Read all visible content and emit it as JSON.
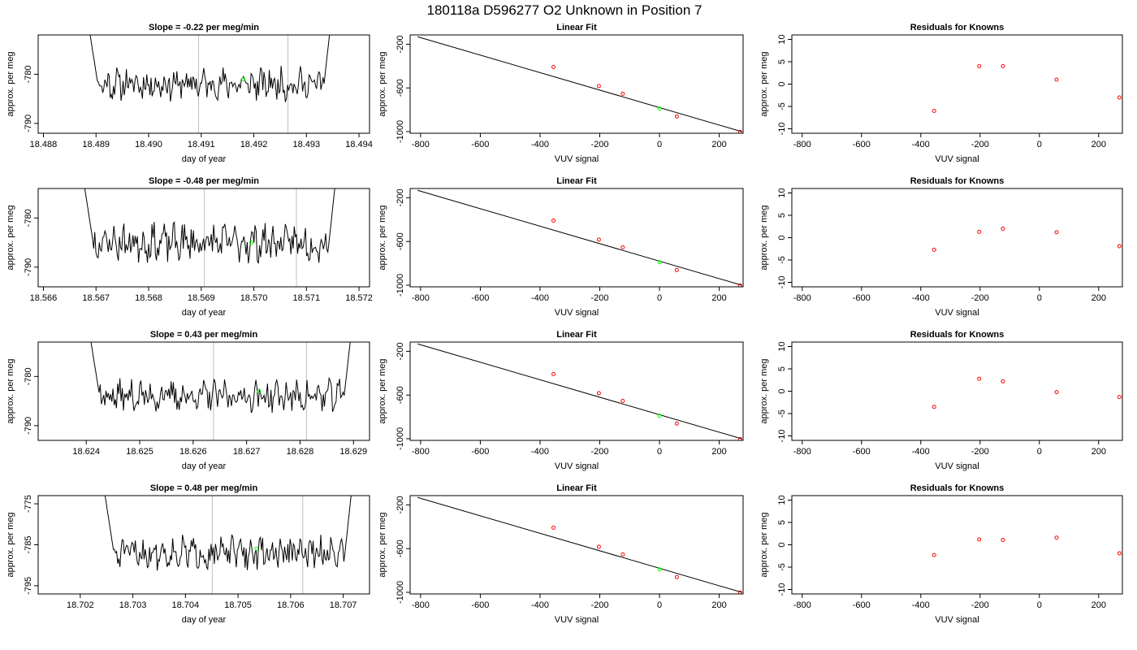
{
  "title": "180118a      D596277   O2 Unknown in Position  7",
  "colors": {
    "trace": "#000000",
    "vline": "#bebebe",
    "highlight": "#00ff00",
    "known": "#ff0000"
  },
  "rows": [
    {
      "charts": [
        {
          "type": "line",
          "title": "Slope =  -0.22  per meg/min",
          "xlabel": "day of year",
          "ylabel": "approx. per meg",
          "xlim": [
            18.4879,
            18.4942
          ],
          "ylim": [
            -792,
            -772
          ],
          "xticks": [
            18.488,
            18.489,
            18.49,
            18.491,
            18.492,
            18.493,
            18.494
          ],
          "xtick_labels": [
            "18.488",
            "18.489",
            "18.490",
            "18.491",
            "18.492",
            "18.493",
            "18.494"
          ],
          "yticks": [
            -790,
            -780
          ],
          "ytick_labels": [
            "-790",
            "-780"
          ],
          "x_start": 18.4888,
          "x_end": 18.4935,
          "baseline": -782,
          "amplitude": 2.5,
          "seed": 11,
          "vlines": [
            18.49095,
            18.49265
          ],
          "highlight": {
            "x": 18.4918,
            "y": -781
          }
        },
        {
          "type": "line",
          "title": "Linear Fit",
          "xlabel": "VUV signal",
          "ylabel": "approx. per meg",
          "xlim": [
            -835,
            280
          ],
          "ylim": [
            -1015,
            -115
          ],
          "xticks": [
            -800,
            -600,
            -400,
            -200,
            0,
            200
          ],
          "xtick_labels": [
            "-800",
            "-600",
            "-400",
            "-200",
            "0",
            "200"
          ],
          "yticks": [
            -1000,
            -600,
            -200
          ],
          "ytick_labels": [
            "-1000",
            "-600",
            "-200"
          ],
          "fit_line": [
            [
              -810,
              -132
            ],
            [
              275,
              -1000
            ]
          ],
          "knowns_x": [
            -355,
            -203,
            -123,
            58,
            270
          ],
          "knowns_y": [
            -409,
            -583,
            -653,
            -861,
            -1003
          ],
          "unknown": {
            "x": 0,
            "y": -790
          }
        },
        {
          "type": "scatter",
          "title": "Residuals for Knowns",
          "xlabel": "VUV signal",
          "ylabel": "approx. per meg",
          "xlim": [
            -835,
            280
          ],
          "ylim": [
            -11,
            11
          ],
          "xticks": [
            -800,
            -600,
            -400,
            -200,
            0,
            200
          ],
          "xtick_labels": [
            "-800",
            "-600",
            "-400",
            "-200",
            "0",
            "200"
          ],
          "yticks": [
            -10,
            -5,
            0,
            5,
            10
          ],
          "ytick_labels": [
            "-10",
            "-5",
            "0",
            "5",
            "10"
          ],
          "x": [
            -355,
            -203,
            -123,
            58,
            270
          ],
          "y": [
            -6,
            4,
            4,
            1,
            -3
          ]
        }
      ]
    },
    {
      "charts": [
        {
          "type": "line",
          "title": "Slope =  -0.48  per meg/min",
          "xlabel": "day of year",
          "ylabel": "approx. per meg",
          "xlim": [
            18.5659,
            18.5722
          ],
          "ylim": [
            -794,
            -774
          ],
          "xticks": [
            18.566,
            18.567,
            18.568,
            18.569,
            18.57,
            18.571,
            18.572
          ],
          "xtick_labels": [
            "18.566",
            "18.567",
            "18.568",
            "18.569",
            "18.570",
            "18.571",
            "18.572"
          ],
          "yticks": [
            -790,
            -780
          ],
          "ytick_labels": [
            "-790",
            "-780"
          ],
          "x_start": 18.5667,
          "x_end": 18.5716,
          "baseline": -785,
          "amplitude": 3,
          "seed": 23,
          "vlines": [
            18.56906,
            18.57081
          ],
          "highlight": {
            "x": 18.56995,
            "y": -785
          }
        },
        {
          "type": "line",
          "title": "Linear Fit",
          "xlabel": "VUV signal",
          "ylabel": "approx. per meg",
          "xlim": [
            -835,
            280
          ],
          "ylim": [
            -1015,
            -115
          ],
          "xticks": [
            -800,
            -600,
            -400,
            -200,
            0,
            200
          ],
          "xtick_labels": [
            "-800",
            "-600",
            "-400",
            "-200",
            "0",
            "200"
          ],
          "yticks": [
            -1000,
            -600,
            -200
          ],
          "ytick_labels": [
            "-1000",
            "-600",
            "-200"
          ],
          "fit_line": [
            [
              -810,
              -132
            ],
            [
              275,
              -1000
            ]
          ],
          "knowns_x": [
            -355,
            -203,
            -123,
            58,
            270
          ],
          "knowns_y": [
            -409,
            -583,
            -653,
            -861,
            -1003
          ],
          "unknown": {
            "x": 0,
            "y": -790
          }
        },
        {
          "type": "scatter",
          "title": "Residuals for Knowns",
          "xlabel": "VUV signal",
          "ylabel": "approx. per meg",
          "xlim": [
            -835,
            280
          ],
          "ylim": [
            -11,
            11
          ],
          "xticks": [
            -800,
            -600,
            -400,
            -200,
            0,
            200
          ],
          "xtick_labels": [
            "-800",
            "-600",
            "-400",
            "-200",
            "0",
            "200"
          ],
          "yticks": [
            -10,
            -5,
            0,
            5,
            10
          ],
          "ytick_labels": [
            "-10",
            "-5",
            "0",
            "5",
            "10"
          ],
          "x": [
            -355,
            -203,
            -123,
            58,
            270
          ],
          "y": [
            -2.7,
            1.3,
            2,
            1.2,
            -1.9
          ]
        }
      ]
    },
    {
      "charts": [
        {
          "type": "line",
          "title": "Slope =  0.43  per meg/min",
          "xlabel": "day of year",
          "ylabel": "approx. per meg",
          "xlim": [
            18.6231,
            18.6293
          ],
          "ylim": [
            -793,
            -773
          ],
          "xticks": [
            18.624,
            18.625,
            18.626,
            18.627,
            18.628,
            18.629
          ],
          "xtick_labels": [
            "18.624",
            "18.625",
            "18.626",
            "18.627",
            "18.628",
            "18.629"
          ],
          "yticks": [
            -790,
            -780
          ],
          "ytick_labels": [
            "-790",
            "-780"
          ],
          "x_start": 18.624,
          "x_end": 18.629,
          "baseline": -784,
          "amplitude": 2.5,
          "seed": 37,
          "vlines": [
            18.62638,
            18.62812
          ],
          "highlight": {
            "x": 18.62723,
            "y": -783
          }
        },
        {
          "type": "line",
          "title": "Linear Fit",
          "xlabel": "VUV signal",
          "ylabel": "approx. per meg",
          "xlim": [
            -835,
            280
          ],
          "ylim": [
            -1015,
            -115
          ],
          "xticks": [
            -800,
            -600,
            -400,
            -200,
            0,
            200
          ],
          "xtick_labels": [
            "-800",
            "-600",
            "-400",
            "-200",
            "0",
            "200"
          ],
          "yticks": [
            -1000,
            -600,
            -200
          ],
          "ytick_labels": [
            "-1000",
            "-600",
            "-200"
          ],
          "fit_line": [
            [
              -810,
              -132
            ],
            [
              275,
              -1000
            ]
          ],
          "knowns_x": [
            -355,
            -203,
            -123,
            58,
            270
          ],
          "knowns_y": [
            -409,
            -583,
            -653,
            -861,
            -1003
          ],
          "unknown": {
            "x": 0,
            "y": -790
          }
        },
        {
          "type": "scatter",
          "title": "Residuals for Knowns",
          "xlabel": "VUV signal",
          "ylabel": "approx. per meg",
          "xlim": [
            -835,
            280
          ],
          "ylim": [
            -11,
            11
          ],
          "xticks": [
            -800,
            -600,
            -400,
            -200,
            0,
            200
          ],
          "xtick_labels": [
            "-800",
            "-600",
            "-400",
            "-200",
            "0",
            "200"
          ],
          "yticks": [
            -10,
            -5,
            0,
            5,
            10
          ],
          "ytick_labels": [
            "-10",
            "-5",
            "0",
            "5",
            "10"
          ],
          "x": [
            -355,
            -203,
            -123,
            58,
            270
          ],
          "y": [
            -3.5,
            2.8,
            2.2,
            -0.2,
            -1.3
          ]
        }
      ]
    },
    {
      "charts": [
        {
          "type": "line",
          "title": "Slope =  0.48  per meg/min",
          "xlabel": "day of year",
          "ylabel": "approx. per meg",
          "xlim": [
            18.7012,
            18.7075
          ],
          "ylim": [
            -797,
            -773
          ],
          "xticks": [
            18.702,
            18.703,
            18.704,
            18.705,
            18.706,
            18.707
          ],
          "xtick_labels": [
            "18.702",
            "18.703",
            "18.704",
            "18.705",
            "18.706",
            "18.707"
          ],
          "yticks": [
            -795,
            -785,
            -775
          ],
          "ytick_labels": [
            "-795",
            "-785",
            "-775"
          ],
          "x_start": 18.7024,
          "x_end": 18.7072,
          "baseline": -787,
          "amplitude": 3,
          "seed": 51,
          "vlines": [
            18.70451,
            18.70623
          ],
          "highlight": {
            "x": 18.70535,
            "y": -786
          }
        },
        {
          "type": "line",
          "title": "Linear Fit",
          "xlabel": "VUV signal",
          "ylabel": "approx. per meg",
          "xlim": [
            -835,
            280
          ],
          "ylim": [
            -1015,
            -115
          ],
          "xticks": [
            -800,
            -600,
            -400,
            -200,
            0,
            200
          ],
          "xtick_labels": [
            "-800",
            "-600",
            "-400",
            "-200",
            "0",
            "200"
          ],
          "yticks": [
            -1000,
            -600,
            -200
          ],
          "ytick_labels": [
            "-1000",
            "-600",
            "-200"
          ],
          "fit_line": [
            [
              -810,
              -132
            ],
            [
              275,
              -1000
            ]
          ],
          "knowns_x": [
            -355,
            -203,
            -123,
            58,
            270
          ],
          "knowns_y": [
            -409,
            -583,
            -653,
            -861,
            -1003
          ],
          "unknown": {
            "x": 0,
            "y": -790
          }
        },
        {
          "type": "scatter",
          "title": "Residuals for Knowns",
          "xlabel": "VUV signal",
          "ylabel": "approx. per meg",
          "xlim": [
            -835,
            280
          ],
          "ylim": [
            -11,
            11
          ],
          "xticks": [
            -800,
            -600,
            -400,
            -200,
            0,
            200
          ],
          "xtick_labels": [
            "-800",
            "-600",
            "-400",
            "-200",
            "0",
            "200"
          ],
          "yticks": [
            -10,
            -5,
            0,
            5,
            10
          ],
          "ytick_labels": [
            "-10",
            "-5",
            "0",
            "5",
            "10"
          ],
          "x": [
            -355,
            -203,
            -123,
            58,
            270
          ],
          "y": [
            -2.3,
            1.2,
            1.1,
            1.6,
            -1.9
          ]
        }
      ]
    }
  ]
}
